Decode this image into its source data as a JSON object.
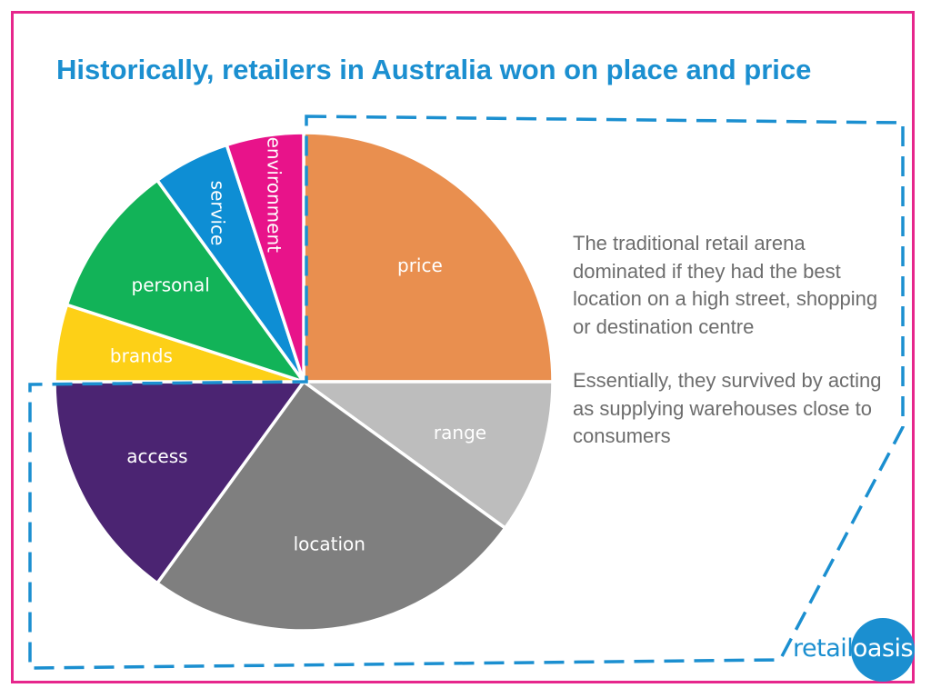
{
  "slide": {
    "title": "Historically, retailers in Australia won on place and price",
    "paragraphs": [
      "The traditional retail arena dominated if they had the best location on a high street, shopping or destination centre",
      "Essentially, they survived by acting as supplying warehouses close to consumers"
    ],
    "logo": {
      "part1": "retail",
      "part2": "oasis"
    },
    "colors": {
      "frame": "#e6268c",
      "title": "#1b8fd0",
      "dashed_border": "#1b8fd0",
      "body_text": "#6d6d6d"
    }
  },
  "chart_data": {
    "type": "pie",
    "title": "",
    "start": "12 o'clock, clockwise",
    "slices": [
      {
        "label": "price",
        "value": 25,
        "color": "#e98f4f",
        "label_rotation": 0
      },
      {
        "label": "range",
        "value": 10,
        "color": "#bdbdbd",
        "label_rotation": 0
      },
      {
        "label": "location",
        "value": 25,
        "color": "#7f7f7f",
        "label_rotation": 0
      },
      {
        "label": "access",
        "value": 15,
        "color": "#4b2472",
        "label_rotation": 0
      },
      {
        "label": "brands",
        "value": 5,
        "color": "#fdd017",
        "label_rotation": 0
      },
      {
        "label": "personal",
        "value": 10,
        "color": "#12b358",
        "label_rotation": 0
      },
      {
        "label": "service",
        "value": 5,
        "color": "#0e8ed4",
        "label_rotation": 90
      },
      {
        "label": "environment",
        "value": 5,
        "color": "#e8138a",
        "label_rotation": 90
      }
    ]
  }
}
